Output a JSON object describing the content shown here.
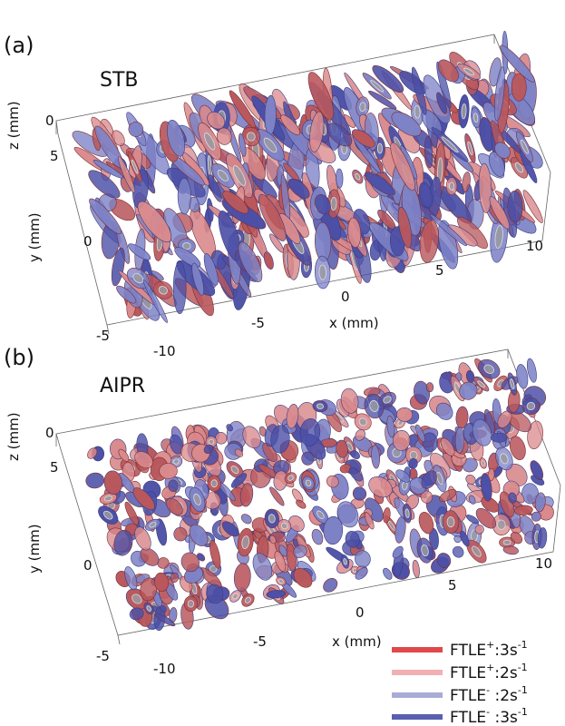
{
  "panels": [
    {
      "label": "(a)",
      "title": "STB",
      "z_axis": {
        "label": "z (mm)",
        "ticks": [
          "0"
        ]
      },
      "y_axis": {
        "label": "y (mm)",
        "ticks": [
          "5",
          "0",
          "-5"
        ]
      },
      "x_axis": {
        "label": "x (mm)",
        "ticks": [
          "-10",
          "-5",
          "0",
          "5",
          "10"
        ]
      }
    },
    {
      "label": "(b)",
      "title": "AIPR",
      "z_axis": {
        "label": "z (mm)",
        "ticks": [
          "0"
        ]
      },
      "y_axis": {
        "label": "y (mm)",
        "ticks": [
          "5",
          "0",
          "-5"
        ]
      },
      "x_axis": {
        "label": "x (mm)",
        "ticks": [
          "-10",
          "-5",
          "0",
          "5",
          "10"
        ]
      }
    }
  ],
  "legend": [
    {
      "base": "FTLE",
      "sign": "+",
      "value": ":3s",
      "exp": "-1",
      "color": "#e0484c"
    },
    {
      "base": "FTLE",
      "sign": "+",
      "value": ":2s",
      "exp": "-1",
      "color": "#f2b0b3"
    },
    {
      "base": "FTLE",
      "sign": "-",
      "value": " :2s",
      "exp": "-1",
      "color": "#a9acd6"
    },
    {
      "base": "FTLE",
      "sign": "-",
      "value": " :3s",
      "exp": "-1",
      "color": "#5a5fb0"
    }
  ],
  "colors": {
    "ftle_plus_strong": "#b9575c",
    "ftle_plus_light": "#d98a8d",
    "ftle_minus_strong": "#4b4fa6",
    "ftle_minus_light": "#7d82c6",
    "core": "#9a9aa0"
  }
}
